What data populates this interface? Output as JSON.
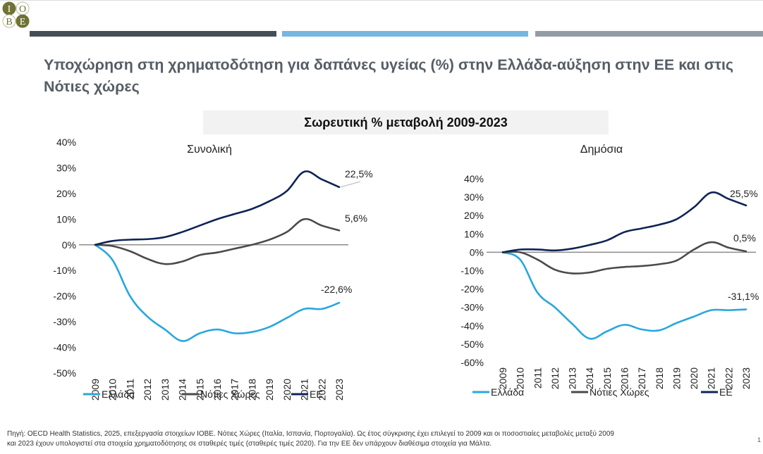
{
  "logo": {
    "letters": [
      "I",
      "O",
      "B",
      "E"
    ]
  },
  "title": "Υποχώρηση στη χρηματοδότηση για δαπάνες υγείας (%) στην Ελλάδα-αύξηση στην ΕΕ και στις Νότιες χώρες",
  "subtitle": "Σωρευτική % μεταβολή 2009-2023",
  "colors": {
    "greece": "#29a7de",
    "southern": "#4a4a4a",
    "eu": "#0e2454",
    "zero_line": "#8c8c8c"
  },
  "chart_data": [
    {
      "type": "line",
      "title": "Συνολική",
      "xlabel": "",
      "ylabel": "",
      "x": [
        "2009",
        "2010",
        "2011",
        "2012",
        "2013",
        "2014",
        "2015",
        "2016",
        "2017",
        "2018",
        "2019",
        "2020",
        "2021",
        "2022",
        "2023"
      ],
      "ylim": [
        -50,
        40
      ],
      "yticks": [
        "40%",
        "30%",
        "20%",
        "10%",
        "0%",
        "-10%",
        "-20%",
        "-30%",
        "-40%",
        "-50%"
      ],
      "ytick_values": [
        40,
        30,
        20,
        10,
        0,
        -10,
        -20,
        -30,
        -40,
        -50
      ],
      "grid": false,
      "legend_position": "bottom",
      "series": [
        {
          "name": "Ελλάδα",
          "key": "greece",
          "values": [
            0,
            -6,
            -20,
            -28,
            -33,
            -37.5,
            -34.5,
            -33,
            -34.5,
            -34,
            -32,
            -28.5,
            -25,
            -25,
            -22.6
          ],
          "end_label": "-22,6%"
        },
        {
          "name": "Νότιες Χώρες",
          "key": "southern",
          "values": [
            0,
            -0.5,
            -2.5,
            -5.5,
            -7.5,
            -6.5,
            -4,
            -3,
            -1.5,
            0,
            2,
            5,
            10,
            7.5,
            5.6
          ],
          "end_label": "5,6%"
        },
        {
          "name": "ΕΕ",
          "key": "eu",
          "values": [
            0,
            1.5,
            2,
            2.2,
            3,
            5,
            7.5,
            10,
            12,
            14,
            17,
            21,
            28.5,
            25.5,
            22.5
          ],
          "end_label": "22,5%"
        }
      ]
    },
    {
      "type": "line",
      "title": "Δημόσια",
      "xlabel": "",
      "ylabel": "",
      "x": [
        "2009",
        "2010",
        "2011",
        "2012",
        "2013",
        "2014",
        "2015",
        "2016",
        "2017",
        "2018",
        "2019",
        "2020",
        "2021",
        "2022",
        "2023"
      ],
      "ylim": [
        -60,
        40
      ],
      "yticks": [
        "40%",
        "30%",
        "20%",
        "10%",
        "0%",
        "-10%",
        "-20%",
        "-30%",
        "-40%",
        "-50%",
        "-60%"
      ],
      "ytick_values": [
        40,
        30,
        20,
        10,
        0,
        -10,
        -20,
        -30,
        -40,
        -50,
        -60
      ],
      "grid": false,
      "legend_position": "bottom",
      "series": [
        {
          "name": "Ελλάδα",
          "key": "greece",
          "values": [
            0,
            -4,
            -22,
            -30,
            -39,
            -47,
            -43,
            -39.5,
            -42,
            -42.5,
            -38.5,
            -35,
            -31.5,
            -31.5,
            -31.1
          ],
          "end_label": "-31,1%"
        },
        {
          "name": "Νότιες Χώρες",
          "key": "southern",
          "values": [
            0,
            0,
            -4,
            -9.5,
            -11.5,
            -11,
            -9,
            -8,
            -7.5,
            -6.5,
            -4.5,
            1.5,
            5.5,
            2.5,
            0.5
          ],
          "end_label": "0,5%"
        },
        {
          "name": "ΕΕ",
          "key": "eu",
          "values": [
            0,
            1.5,
            1.5,
            1,
            2,
            4,
            6.5,
            11,
            13,
            15,
            18,
            24.5,
            32.5,
            29,
            25.5
          ],
          "end_label": "25,5%"
        }
      ]
    }
  ],
  "footer": {
    "line1": "Πηγή: OECD Health Statistics, 2025, επεξεργασία στοιχείων ΙΟΒΕ. Νότιες Χώρες (Ιταλία, Ισπανία, Πορτογαλία). Ως έτος σύγκρισης έχει επιλεγεί το 2009 και οι ποσοστιαίες μεταβολές μεταξύ 2009",
    "line2": "και 2023 έχουν υπολογιστεί στα στοιχεία χρηματοδότησης σε σταθερές τιμές (σταθερές τιμές 2020). Για την ΕΕ δεν υπάρχουν διαθέσιμα στοιχεία για Μάλτα."
  },
  "page_number": "1"
}
